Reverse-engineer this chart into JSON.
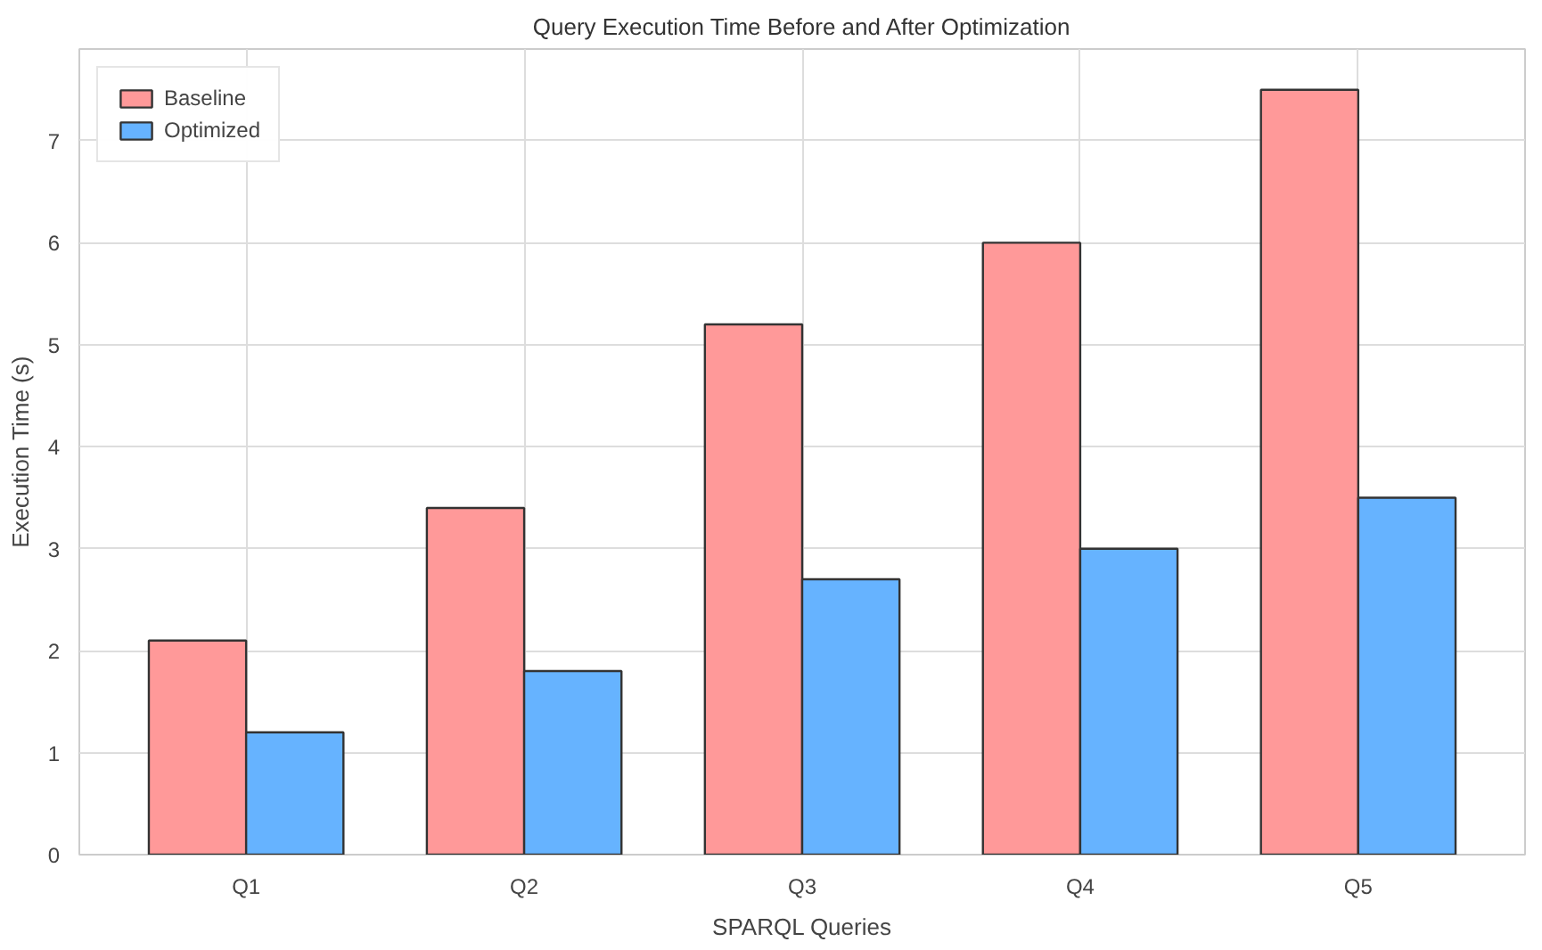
{
  "chart_data": {
    "type": "bar",
    "title": "Query Execution Time Before and After Optimization",
    "xlabel": "SPARQL Queries",
    "ylabel": "Execution Time (s)",
    "categories": [
      "Q1",
      "Q2",
      "Q3",
      "Q4",
      "Q5"
    ],
    "series": [
      {
        "name": "Baseline",
        "color": "#ff9999",
        "values": [
          2.1,
          3.4,
          5.2,
          6.0,
          7.5
        ]
      },
      {
        "name": "Optimized",
        "color": "#66b3ff",
        "values": [
          1.2,
          1.8,
          2.7,
          3.0,
          3.5
        ]
      }
    ],
    "ylim": [
      0,
      7.9
    ],
    "yticks": [
      0,
      1,
      2,
      3,
      4,
      5,
      6,
      7
    ],
    "grid": true,
    "legend": "top left"
  }
}
